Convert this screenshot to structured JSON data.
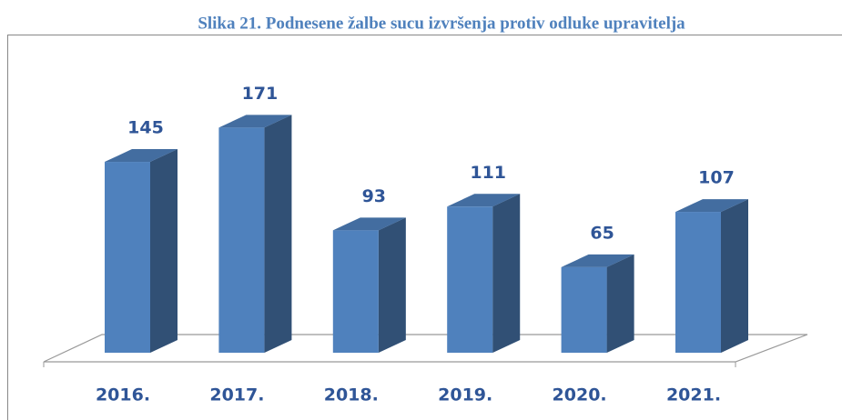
{
  "chart_data": {
    "type": "bar3d",
    "title": "Slika 21. Podnesene žalbe sucu izvršenja protiv odluke upravitelja",
    "categories": [
      "2016.",
      "2017.",
      "2018.",
      "2019.",
      "2020.",
      "2021."
    ],
    "values": [
      145,
      171,
      93,
      111,
      65,
      107
    ],
    "color": "#4f81bd"
  }
}
